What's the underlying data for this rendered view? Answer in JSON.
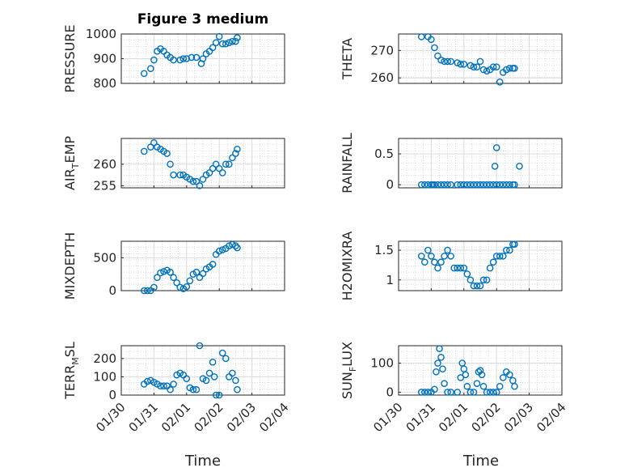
{
  "figure": {
    "title": "Figure 3 medium",
    "xlabel": "Time",
    "x_tick_labels": [
      "01/30",
      "01/31",
      "02/01",
      "02/02",
      "02/03",
      "02/04"
    ]
  },
  "colors": {
    "marker": "#0072BD",
    "axis": "#262626",
    "grid": "#c0c0c0",
    "background": "#ffffff"
  },
  "chart_data": [
    {
      "type": "scatter",
      "title": "Figure 3 medium",
      "ylabel": "PRESSURE",
      "ylabel_sub": "",
      "ylim": [
        800,
        1000
      ],
      "yticks": [
        800,
        900,
        1000
      ],
      "xlim": [
        0,
        5
      ],
      "xlabel": "",
      "grid": true,
      "minor_grid": true,
      "x": [
        0.7,
        0.9,
        1.0,
        1.1,
        1.2,
        1.3,
        1.4,
        1.5,
        1.6,
        1.8,
        1.9,
        2.0,
        2.15,
        2.3,
        2.45,
        2.5,
        2.6,
        2.7,
        2.8,
        2.9,
        3.0,
        3.1,
        3.2,
        3.3,
        3.4,
        3.5,
        3.55
      ],
      "y": [
        840,
        860,
        895,
        930,
        940,
        930,
        915,
        905,
        895,
        895,
        900,
        900,
        905,
        905,
        880,
        900,
        920,
        930,
        945,
        965,
        990,
        960,
        960,
        965,
        970,
        970,
        985
      ]
    },
    {
      "type": "scatter",
      "title": "",
      "ylabel": "THETA",
      "ylabel_sub": "",
      "ylim": [
        258,
        276
      ],
      "yticks": [
        260,
        270
      ],
      "xlim": [
        0,
        5
      ],
      "xlabel": "",
      "grid": true,
      "minor_grid": true,
      "x": [
        0.7,
        0.9,
        1.0,
        1.1,
        1.2,
        1.3,
        1.4,
        1.5,
        1.6,
        1.8,
        1.9,
        2.0,
        2.2,
        2.3,
        2.4,
        2.5,
        2.6,
        2.7,
        2.8,
        2.9,
        3.0,
        3.1,
        3.2,
        3.3,
        3.4,
        3.5,
        3.55
      ],
      "y": [
        275,
        275,
        274,
        271,
        268,
        266.5,
        266,
        266,
        266,
        265.5,
        265,
        265,
        264.5,
        264,
        264,
        266,
        263,
        262.5,
        263,
        264,
        264,
        258.5,
        262,
        263,
        263.5,
        263.5,
        263.5
      ]
    },
    {
      "type": "scatter",
      "title": "",
      "ylabel": "AIR",
      "ylabel_sub": "T",
      "ylabel_rest": "EMP",
      "ylim": [
        254.5,
        266
      ],
      "yticks": [
        255,
        260
      ],
      "xlim": [
        0,
        5
      ],
      "xlabel": "",
      "grid": true,
      "minor_grid": true,
      "x": [
        0.7,
        0.9,
        1.0,
        1.1,
        1.2,
        1.3,
        1.4,
        1.5,
        1.6,
        1.8,
        1.9,
        2.0,
        2.1,
        2.2,
        2.3,
        2.4,
        2.5,
        2.6,
        2.7,
        2.8,
        2.9,
        3.0,
        3.1,
        3.2,
        3.3,
        3.4,
        3.5,
        3.55
      ],
      "y": [
        263,
        264,
        265,
        264,
        263.5,
        263,
        262.5,
        260,
        257.5,
        257.5,
        257.5,
        257,
        256.5,
        256,
        256,
        255,
        256.5,
        257.5,
        258,
        259,
        260,
        259,
        258,
        260,
        260,
        261.5,
        262.5,
        263.5
      ]
    },
    {
      "type": "scatter",
      "title": "",
      "ylabel": "RAINFALL",
      "ylabel_sub": "",
      "ylim": [
        -0.05,
        0.75
      ],
      "yticks": [
        0,
        0.5
      ],
      "xlim": [
        0,
        5
      ],
      "xlabel": "",
      "grid": true,
      "minor_grid": true,
      "x": [
        0.7,
        0.8,
        0.9,
        1.0,
        1.05,
        1.1,
        1.2,
        1.3,
        1.4,
        1.5,
        1.6,
        1.8,
        1.9,
        2.0,
        2.1,
        2.2,
        2.3,
        2.4,
        2.5,
        2.6,
        2.7,
        2.8,
        2.9,
        3.0,
        3.1,
        3.2,
        3.3,
        3.4,
        3.5,
        3.55,
        2.95,
        3.0,
        3.7
      ],
      "y": [
        0,
        0,
        0,
        0,
        0,
        0,
        0,
        0,
        0,
        0,
        0,
        0,
        0,
        0,
        0,
        0,
        0,
        0,
        0,
        0,
        0,
        0,
        0,
        0,
        0,
        0,
        0,
        0,
        0,
        0,
        0.3,
        0.6,
        0.3
      ]
    },
    {
      "type": "scatter",
      "title": "",
      "ylabel": "MIXDEPTH",
      "ylabel_sub": "",
      "ylim": [
        0,
        750
      ],
      "yticks": [
        0,
        500
      ],
      "xlim": [
        0,
        5
      ],
      "xlabel": "",
      "grid": true,
      "minor_grid": true,
      "x": [
        0.7,
        0.8,
        0.9,
        1.0,
        1.1,
        1.2,
        1.3,
        1.4,
        1.5,
        1.6,
        1.7,
        1.8,
        1.9,
        2.0,
        2.1,
        2.2,
        2.3,
        2.4,
        2.5,
        2.6,
        2.7,
        2.8,
        2.9,
        3.0,
        3.1,
        3.2,
        3.3,
        3.4,
        3.5,
        3.55
      ],
      "y": [
        0,
        0,
        0,
        50,
        200,
        270,
        290,
        310,
        280,
        200,
        120,
        50,
        30,
        60,
        150,
        250,
        280,
        200,
        260,
        330,
        360,
        400,
        550,
        600,
        620,
        640,
        680,
        700,
        680,
        650
      ]
    },
    {
      "type": "scatter",
      "title": "",
      "ylabel": "H2OMIXRA",
      "ylabel_sub": "",
      "ylim": [
        0.82,
        1.65
      ],
      "yticks": [
        1,
        1.5
      ],
      "xlim": [
        0,
        5
      ],
      "xlabel": "",
      "grid": true,
      "minor_grid": true,
      "x": [
        0.7,
        0.8,
        0.9,
        1.0,
        1.1,
        1.2,
        1.3,
        1.4,
        1.5,
        1.6,
        1.7,
        1.8,
        1.9,
        2.0,
        2.1,
        2.2,
        2.3,
        2.4,
        2.5,
        2.6,
        2.7,
        2.8,
        2.9,
        3.0,
        3.1,
        3.2,
        3.3,
        3.4,
        3.5,
        3.55
      ],
      "y": [
        1.4,
        1.3,
        1.5,
        1.4,
        1.3,
        1.2,
        1.3,
        1.4,
        1.5,
        1.4,
        1.2,
        1.2,
        1.2,
        1.2,
        1.1,
        1.0,
        0.9,
        0.9,
        0.9,
        1.0,
        1.0,
        1.2,
        1.3,
        1.4,
        1.4,
        1.4,
        1.5,
        1.5,
        1.6,
        1.6
      ]
    },
    {
      "type": "scatter",
      "title": "",
      "ylabel": "TERR",
      "ylabel_sub": "M",
      "ylabel_rest": "SL",
      "ylim": [
        0,
        270
      ],
      "yticks": [
        0,
        100,
        200
      ],
      "xlim": [
        0,
        5
      ],
      "xlabel": "Time",
      "grid": true,
      "minor_grid": true,
      "x": [
        0.7,
        0.8,
        0.9,
        1.0,
        1.1,
        1.2,
        1.3,
        1.4,
        1.5,
        1.6,
        1.7,
        1.8,
        1.9,
        2.0,
        2.1,
        2.2,
        2.3,
        2.4,
        2.5,
        2.6,
        2.7,
        2.8,
        2.85,
        2.9,
        3.0,
        3.1,
        3.2,
        3.3,
        3.4,
        3.5,
        3.55
      ],
      "y": [
        60,
        75,
        80,
        70,
        60,
        50,
        50,
        50,
        30,
        60,
        110,
        120,
        110,
        90,
        40,
        30,
        30,
        270,
        90,
        80,
        120,
        180,
        100,
        0,
        0,
        230,
        200,
        100,
        120,
        80,
        30
      ]
    },
    {
      "type": "scatter",
      "title": "",
      "ylabel": "SUN",
      "ylabel_sub": "F",
      "ylabel_rest": "LUX",
      "ylim": [
        -10,
        160
      ],
      "yticks": [
        0,
        100
      ],
      "xlim": [
        0,
        5
      ],
      "xlabel": "Time",
      "grid": true,
      "minor_grid": true,
      "x": [
        0.7,
        0.8,
        0.9,
        1.0,
        1.1,
        1.15,
        1.2,
        1.25,
        1.3,
        1.35,
        1.4,
        1.5,
        1.6,
        1.8,
        1.9,
        1.95,
        2.0,
        2.05,
        2.1,
        2.2,
        2.3,
        2.4,
        2.45,
        2.5,
        2.55,
        2.6,
        2.7,
        2.8,
        2.9,
        3.0,
        3.1,
        3.2,
        3.3,
        3.4,
        3.5,
        3.55
      ],
      "y": [
        0,
        0,
        0,
        0,
        10,
        70,
        100,
        150,
        120,
        80,
        30,
        0,
        0,
        0,
        50,
        100,
        80,
        60,
        20,
        0,
        0,
        30,
        70,
        75,
        60,
        20,
        0,
        0,
        0,
        0,
        20,
        50,
        70,
        60,
        40,
        20
      ]
    }
  ]
}
